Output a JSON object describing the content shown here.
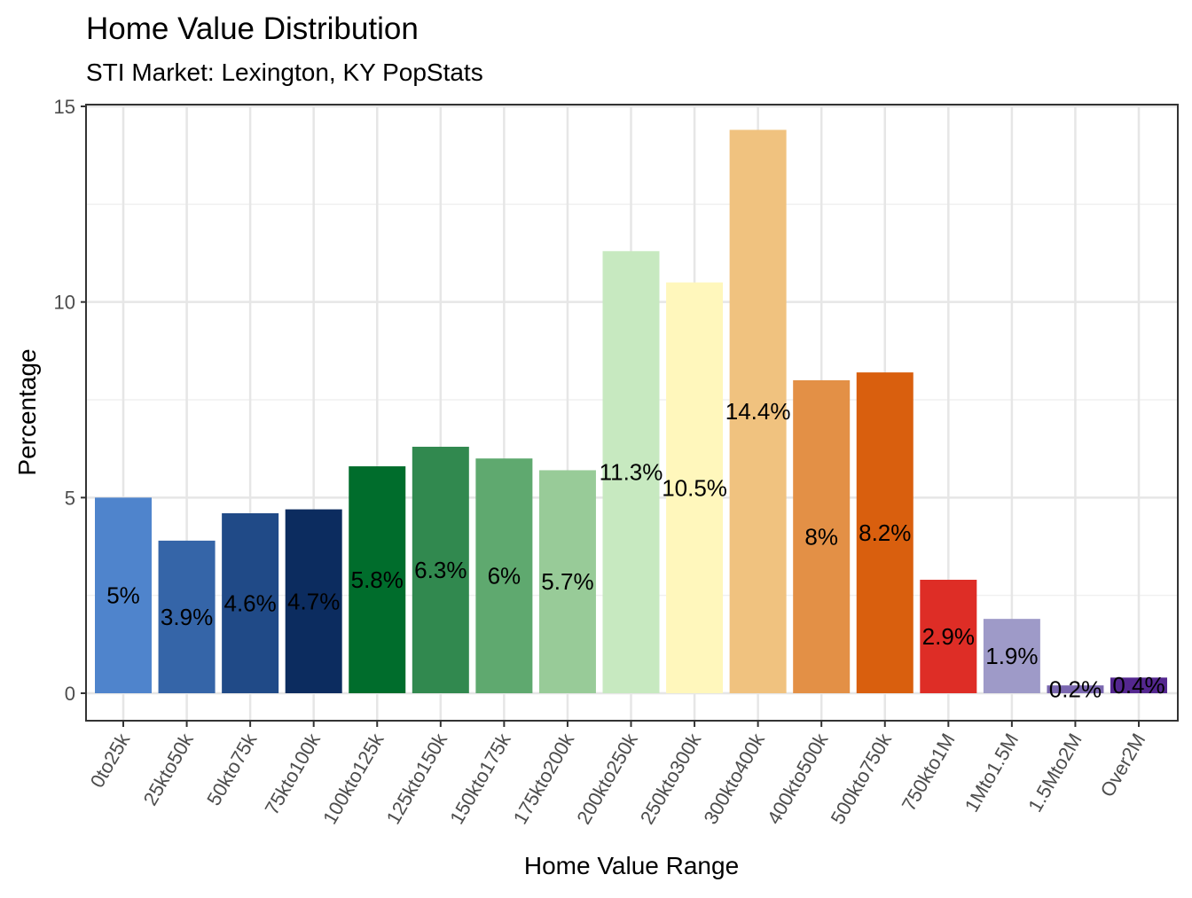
{
  "chart_data": {
    "type": "bar",
    "title": "Home Value Distribution",
    "subtitle": "STI Market: Lexington, KY PopStats",
    "xlabel": "Home Value Range",
    "ylabel": "Percentage",
    "ylim": [
      0,
      15
    ],
    "yticks": [
      0,
      5,
      10,
      15
    ],
    "grid": true,
    "legend": "none",
    "categories": [
      "0to25k",
      "25kto50k",
      "50kto75k",
      "75kto100k",
      "100kto125k",
      "125kto150k",
      "150kto175k",
      "175kto200k",
      "200kto250k",
      "250kto300k",
      "300kto400k",
      "400kto500k",
      "500kto750k",
      "750kto1M",
      "1Mto1.5M",
      "1.5Mto2M",
      "Over2M"
    ],
    "values": [
      5,
      3.9,
      4.6,
      4.7,
      5.8,
      6.3,
      6,
      5.7,
      11.3,
      10.5,
      14.4,
      8,
      8.2,
      2.9,
      1.9,
      0.2,
      0.4
    ],
    "data_labels": [
      "5%",
      "3.9%",
      "4.6%",
      "4.7%",
      "5.8%",
      "6.3%",
      "6%",
      "5.7%",
      "11.3%",
      "10.5%",
      "14.4%",
      "8%",
      "8.2%",
      "2.9%",
      "1.9%",
      "0.2%",
      "0.4%"
    ],
    "colors": [
      "#4f84cc",
      "#3565a8",
      "#204a87",
      "#0c2c5f",
      "#006d2c",
      "#31894f",
      "#5fa96f",
      "#98cb98",
      "#c7e9c0",
      "#fff7bc",
      "#f0c27f",
      "#e39046",
      "#d95f0e",
      "#de2d26",
      "#9e9ac8",
      "#7b68b0",
      "#54278f"
    ]
  }
}
